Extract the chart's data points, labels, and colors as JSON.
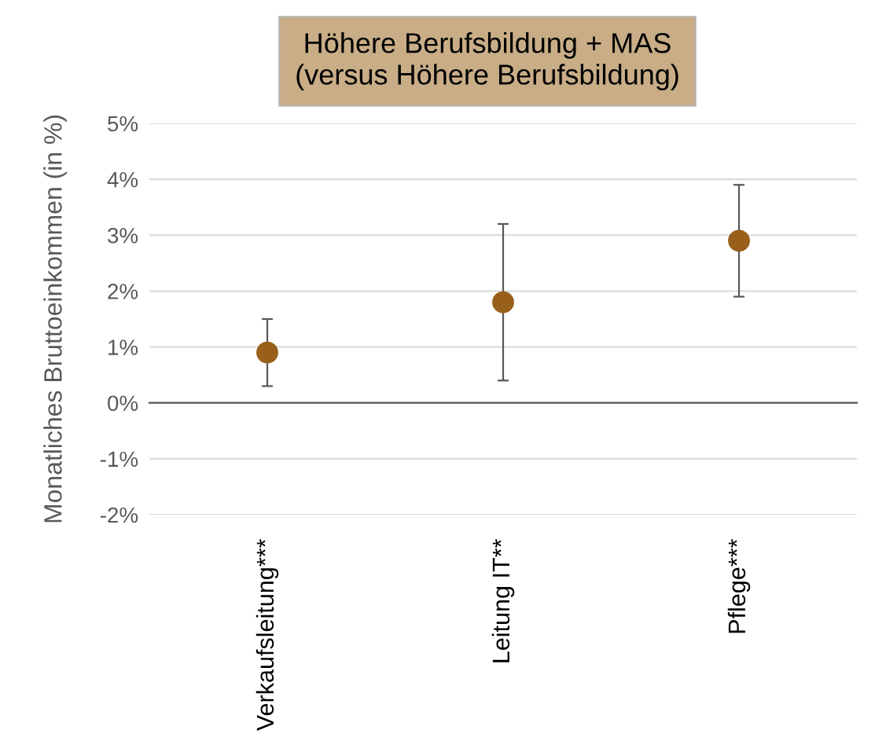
{
  "chart_data": {
    "type": "scatter",
    "title": "Höhere Berufsbildung + MAS\n(versus Höhere Berufsbildung)",
    "ylabel": "Monatliches Bruttoeinkommen (in %)",
    "categories": [
      "Verkaufsleitung***",
      "Leitung IT**",
      "Pflege***"
    ],
    "values": [
      0.9,
      1.8,
      2.9
    ],
    "errors": [
      [
        0.3,
        1.5
      ],
      [
        0.4,
        3.2
      ],
      [
        1.9,
        3.9
      ]
    ],
    "color": "#98601a",
    "marker": "circle",
    "grid": "y",
    "legend": false,
    "ylim": [
      -2,
      5
    ],
    "yticks": [
      {
        "value": -2,
        "label": "-2%"
      },
      {
        "value": -1,
        "label": "-1%"
      },
      {
        "value": 0,
        "label": "0%"
      },
      {
        "value": 1,
        "label": "1%"
      },
      {
        "value": 2,
        "label": "2%"
      },
      {
        "value": 3,
        "label": "3%"
      },
      {
        "value": 4,
        "label": "4%"
      },
      {
        "value": 5,
        "label": "5%"
      }
    ]
  }
}
